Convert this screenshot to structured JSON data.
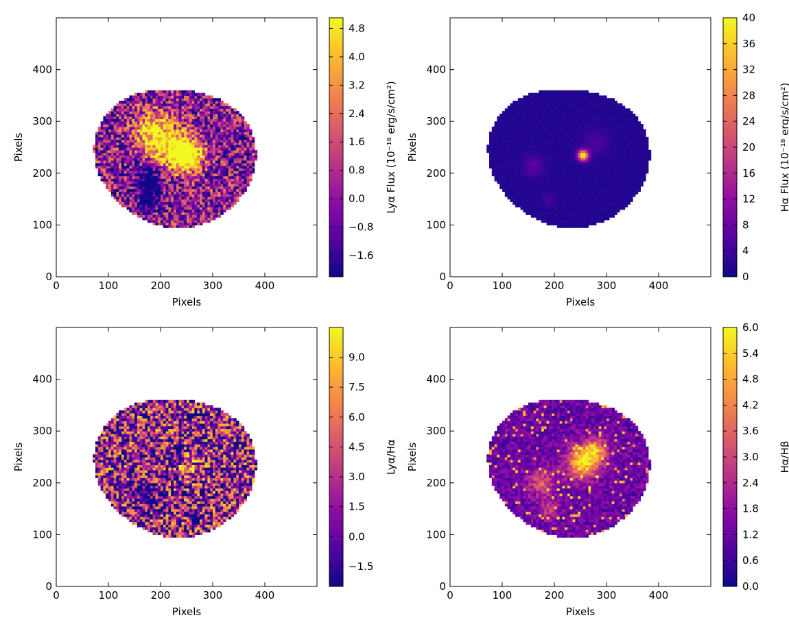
{
  "chart_data": [
    {
      "type": "heatmap",
      "xlabel": "Pixels",
      "ylabel": "Pixels",
      "xlim": [
        0,
        500
      ],
      "ylim": [
        0,
        500
      ],
      "xticks": [
        0,
        100,
        200,
        300,
        400
      ],
      "yticks": [
        0,
        100,
        200,
        300,
        400
      ],
      "colormap": "plasma",
      "colorbar": {
        "label": "Lyα Flux (10⁻¹⁸ erg/s/cm²)",
        "range": [
          -2.2,
          5.1
        ],
        "ticks": [
          "−1.6",
          "−0.8",
          "0.0",
          "0.8",
          "1.6",
          "2.4",
          "3.2",
          "4.0",
          "4.8"
        ]
      },
      "features": [
        {
          "x": 250,
          "y": 235,
          "value": "≥4.8",
          "kind": "saturated knot"
        },
        {
          "x": 200,
          "y": 300,
          "value": "high",
          "kind": "bright arc"
        },
        {
          "x": 175,
          "y": 190,
          "value": "≤ −1.6",
          "kind": "dark trough"
        }
      ]
    },
    {
      "type": "heatmap",
      "xlabel": "Pixels",
      "ylabel": "Pixels",
      "xlim": [
        0,
        500
      ],
      "ylim": [
        0,
        500
      ],
      "xticks": [
        0,
        100,
        200,
        300,
        400
      ],
      "yticks": [
        0,
        100,
        200,
        300,
        400
      ],
      "colormap": "plasma",
      "colorbar": {
        "label": "Hα Flux (10⁻¹⁸ erg/s/cm²)",
        "range": [
          0,
          40
        ],
        "ticks": [
          "0",
          "4",
          "8",
          "12",
          "16",
          "20",
          "24",
          "28",
          "32",
          "36",
          "40"
        ]
      },
      "features": [
        {
          "x": 255,
          "y": 235,
          "value": "≈40",
          "kind": "bright compact source"
        },
        {
          "x": 160,
          "y": 215,
          "value": "≈6",
          "kind": "faint filament"
        }
      ]
    },
    {
      "type": "heatmap",
      "xlabel": "Pixels",
      "ylabel": "Pixels",
      "xlim": [
        0,
        500
      ],
      "ylim": [
        0,
        500
      ],
      "xticks": [
        0,
        100,
        200,
        300,
        400
      ],
      "yticks": [
        0,
        100,
        200,
        300,
        400
      ],
      "colormap": "plasma",
      "colorbar": {
        "label": "Lyα/Hα",
        "range": [
          -2.5,
          10.5
        ],
        "ticks": [
          "−1.5",
          "0.0",
          "1.5",
          "3.0",
          "4.5",
          "6.0",
          "7.5",
          "9.0"
        ]
      },
      "features": [
        {
          "x": 250,
          "y": 235,
          "value": "≈5",
          "kind": "ring"
        },
        {
          "x": 170,
          "y": 180,
          "value": "≤ −1.5",
          "kind": "dark trough"
        }
      ]
    },
    {
      "type": "heatmap",
      "xlabel": "Pixels",
      "ylabel": "Pixels",
      "xlim": [
        0,
        500
      ],
      "ylim": [
        0,
        500
      ],
      "xticks": [
        0,
        100,
        200,
        300,
        400
      ],
      "yticks": [
        0,
        100,
        200,
        300,
        400
      ],
      "colormap": "plasma",
      "colorbar": {
        "label": "Hα/Hβ",
        "range": [
          0,
          6
        ],
        "ticks": [
          "0.0",
          "0.6",
          "1.2",
          "1.8",
          "2.4",
          "3.0",
          "3.6",
          "4.2",
          "4.8",
          "5.4",
          "6.0"
        ]
      },
      "features": [
        {
          "x": 255,
          "y": 240,
          "value": "≈5",
          "kind": "bright region"
        },
        {
          "x": 175,
          "y": 200,
          "value": "≈2.5",
          "kind": "filament"
        }
      ]
    }
  ]
}
